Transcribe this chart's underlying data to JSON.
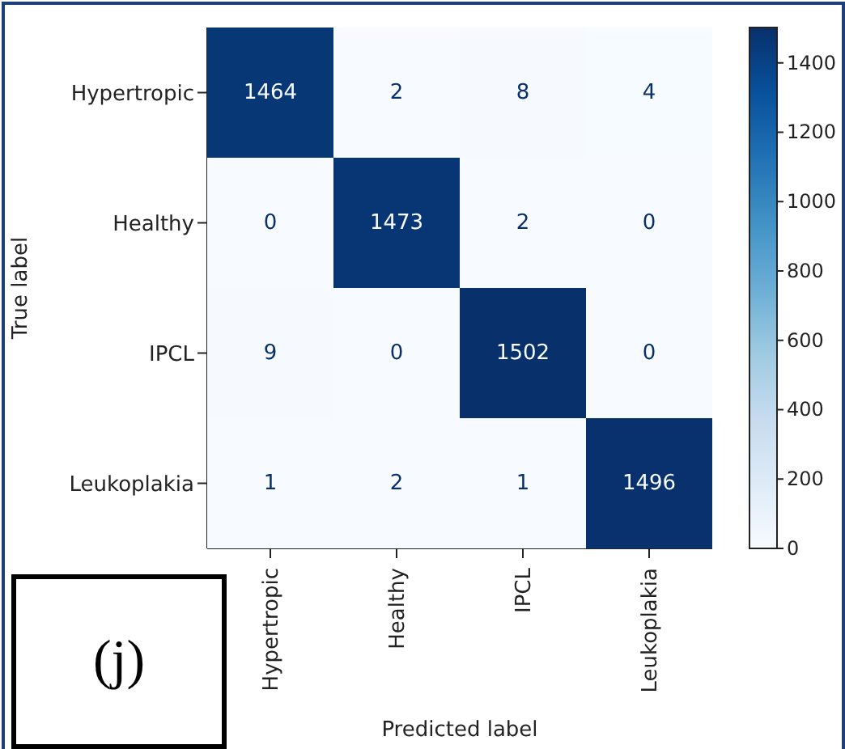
{
  "chart_data": {
    "type": "heatmap",
    "xlabel": "Predicted label",
    "ylabel": "True label",
    "categories": [
      "Hypertropic",
      "Healthy",
      "IPCL",
      "Leukoplakia"
    ],
    "y_categories": [
      "Hypertropic",
      "Healthy",
      "IPCL",
      "Leukoplakia"
    ],
    "cells": [
      [
        1464,
        2,
        8,
        4
      ],
      [
        0,
        1473,
        2,
        0
      ],
      [
        9,
        0,
        1502,
        0
      ],
      [
        1,
        2,
        1,
        1496
      ]
    ],
    "data_labels": true,
    "clim": [
      0,
      1502
    ],
    "cticks": [
      0,
      200,
      400,
      600,
      800,
      1000,
      1200,
      1400
    ],
    "annotations": [
      "(j)"
    ]
  }
}
